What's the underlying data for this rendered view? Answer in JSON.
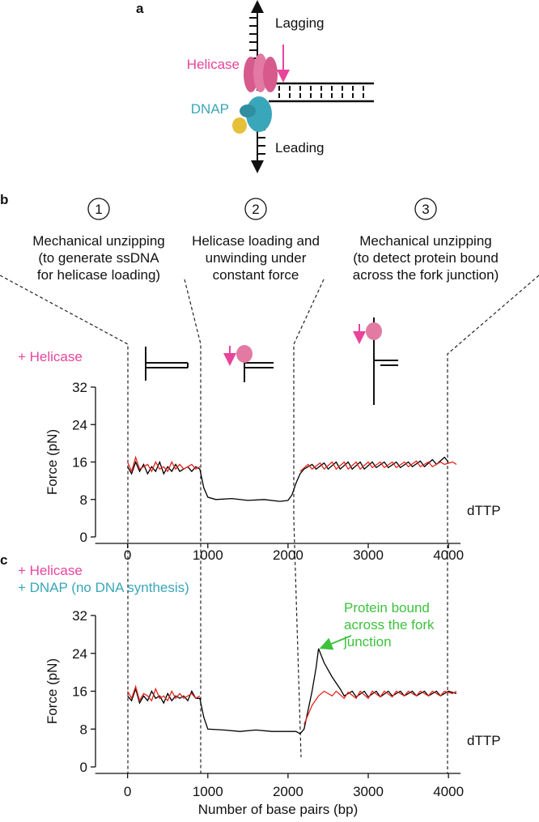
{
  "panel_a": {
    "label": "a",
    "lagging": "Lagging",
    "helicase": "Helicase",
    "dnap": "DNAP",
    "leading": "Leading"
  },
  "panel_b": {
    "label": "b",
    "steps": [
      {
        "number": "1",
        "lines": [
          "Mechanical unzipping",
          "(to generate ssDNA",
          "for helicase loading)"
        ]
      },
      {
        "number": "2",
        "lines": [
          "Helicase loading and",
          "unwinding under",
          "constant force"
        ]
      },
      {
        "number": "3",
        "lines": [
          "Mechanical unzipping",
          "(to detect protein bound",
          "across the fork junction)"
        ]
      }
    ]
  },
  "chart_data": [
    {
      "type": "line",
      "ylabel": "Force (pN)",
      "annotations": [
        {
          "text": "+ Helicase",
          "color": "#e8449c"
        },
        {
          "text": "dTTP",
          "color": "#111111"
        }
      ],
      "xlim": [
        -400,
        4150
      ],
      "ylim": [
        0,
        32
      ],
      "xticks": [
        0,
        1000,
        2000,
        3000,
        4000
      ],
      "yticks": [
        0,
        8,
        16,
        24,
        32
      ],
      "series": [
        {
          "color": "#000000",
          "x": [
            0,
            50,
            100,
            150,
            200,
            250,
            300,
            350,
            400,
            450,
            500,
            550,
            600,
            650,
            700,
            750,
            800,
            850,
            900,
            950,
            1000,
            1100,
            1300,
            1500,
            1700,
            1900,
            2000,
            2050,
            2100,
            2150,
            2200,
            2300,
            2350,
            2450,
            2500,
            2600,
            2650,
            2750,
            2800,
            2900,
            2950,
            3050,
            3100,
            3200,
            3250,
            3350,
            3400,
            3500,
            3550,
            3650,
            3700,
            3800,
            3850,
            3950,
            4000
          ],
          "values": [
            15,
            13.5,
            16,
            14,
            15.5,
            13.5,
            15,
            14,
            16,
            13.5,
            15,
            14,
            15.5,
            14,
            14.5,
            15,
            14,
            15,
            14.5,
            10.5,
            8.5,
            8,
            8.2,
            7.8,
            8,
            7.6,
            7.8,
            9,
            11.5,
            13.5,
            14.5,
            15.5,
            14.5,
            15.8,
            14.5,
            16,
            14.5,
            16,
            14.5,
            16,
            14.5,
            16,
            14.8,
            16,
            14.8,
            16,
            14.8,
            16,
            15,
            16.2,
            15,
            16.5,
            15.5,
            17,
            16
          ]
        },
        {
          "color": "#e8231c",
          "x": [
            0,
            50,
            100,
            150,
            200,
            250,
            300,
            350,
            400,
            450,
            500,
            550,
            600,
            650,
            700,
            750,
            800,
            850,
            900,
            1500,
            2150,
            2250,
            2300,
            2400,
            2450,
            2550,
            2600,
            2700,
            2750,
            2850,
            2900,
            3000,
            3050,
            3150,
            3200,
            3300,
            3350,
            3450,
            3500,
            3600,
            3650,
            3750,
            3800,
            3900,
            3950,
            4050,
            4100
          ],
          "values": [
            16,
            14,
            17,
            14.5,
            15,
            15.5,
            14,
            16,
            14.5,
            15,
            14,
            16,
            14.5,
            15.5,
            14.5,
            15,
            15.5,
            14.5,
            15,
            null,
            14,
            15.5,
            14.5,
            15.8,
            14.5,
            16,
            14.5,
            16,
            14.5,
            16,
            14.5,
            16,
            14.8,
            16,
            14.8,
            16,
            14.8,
            16,
            15,
            16.2,
            15,
            16,
            15,
            16,
            15.5,
            16,
            15.5
          ]
        }
      ]
    },
    {
      "type": "line",
      "panel_label": "c",
      "ylabel": "Force (pN)",
      "xlabel": "Number of base pairs (bp)",
      "annotations": [
        {
          "text": "+ Helicase",
          "color": "#e8449c"
        },
        {
          "text": "+ DNAP (no DNA synthesis)",
          "color": "#3aa6b9"
        },
        {
          "text": "dTTP",
          "color": "#111111"
        }
      ],
      "callout": {
        "lines": [
          "Protein bound",
          "across the fork",
          "junction"
        ],
        "color": "#3cc23c"
      },
      "xlim": [
        -400,
        4150
      ],
      "ylim": [
        0,
        32
      ],
      "xticks": [
        0,
        1000,
        2000,
        3000,
        4000
      ],
      "yticks": [
        0,
        8,
        16,
        24,
        32
      ],
      "series": [
        {
          "color": "#000000",
          "x": [
            0,
            50,
            100,
            150,
            200,
            250,
            300,
            350,
            400,
            450,
            500,
            550,
            600,
            650,
            700,
            750,
            800,
            850,
            900,
            950,
            1000,
            1200,
            1400,
            1600,
            1800,
            2000,
            2100,
            2150,
            2200,
            2250,
            2300,
            2350,
            2380,
            2450,
            2550,
            2650,
            2700,
            2800,
            2850,
            2950,
            3000,
            3100,
            3150,
            3250,
            3300,
            3400,
            3450,
            3550,
            3600,
            3700,
            3750,
            3850,
            3900,
            4000,
            4100
          ],
          "values": [
            15,
            14,
            16.5,
            13.5,
            15,
            14,
            16,
            14.5,
            15,
            13.5,
            15.5,
            14,
            15,
            14.5,
            15,
            14,
            16,
            14.5,
            14.5,
            10.5,
            8,
            7.8,
            7.5,
            7.8,
            7.5,
            7.5,
            7.5,
            7,
            8,
            12,
            16,
            21,
            25,
            22,
            19,
            16.5,
            15,
            16,
            14.8,
            16,
            14.8,
            16,
            14.8,
            16,
            15,
            16,
            15,
            16,
            15,
            16,
            15,
            16,
            15,
            16,
            15.5
          ]
        },
        {
          "color": "#e8231c",
          "x": [
            0,
            50,
            100,
            150,
            200,
            250,
            300,
            350,
            400,
            450,
            500,
            550,
            600,
            650,
            700,
            750,
            800,
            850,
            900,
            1500,
            2200,
            2300,
            2380,
            2450,
            2550,
            2600,
            2700,
            2750,
            2850,
            2900,
            3000,
            3050,
            3150,
            3200,
            3300,
            3350,
            3450,
            3500,
            3600,
            3650,
            3750,
            3800,
            3900,
            3950,
            4050,
            4100
          ],
          "values": [
            16,
            14.5,
            17,
            14,
            15.5,
            15,
            14,
            16.5,
            14.5,
            15,
            14,
            16,
            14.5,
            15.5,
            14.5,
            15,
            15.5,
            14.5,
            15,
            null,
            9,
            13,
            15,
            16,
            15,
            16,
            14.5,
            15.8,
            14.5,
            16,
            14.5,
            16,
            14.8,
            16,
            14.8,
            16,
            15,
            16,
            15,
            16,
            15,
            16,
            15,
            16,
            15.5,
            16
          ]
        }
      ]
    }
  ]
}
